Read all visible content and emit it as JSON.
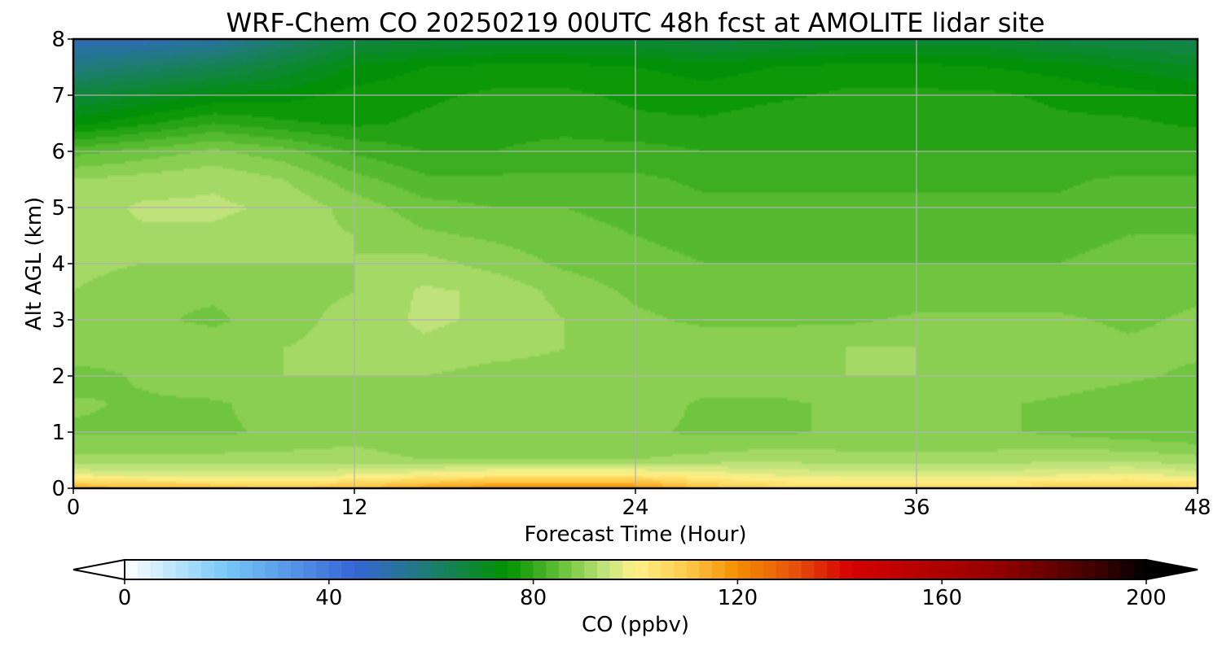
{
  "chart_data": {
    "type": "heatmap",
    "title": "WRF-Chem CO  20250219 00UTC 48h fcst at AMOLITE lidar site",
    "xlabel": "Forecast Time (Hour)",
    "ylabel": "Alt AGL (km)",
    "xlim": [
      0,
      48
    ],
    "ylim": [
      0,
      8
    ],
    "x_ticks": [
      "0",
      "12",
      "24",
      "36",
      "48"
    ],
    "y_ticks": [
      "0",
      "1",
      "2",
      "3",
      "4",
      "5",
      "6",
      "7",
      "8"
    ],
    "grid": true,
    "x": [
      0,
      3,
      6,
      9,
      12,
      15,
      18,
      21,
      24,
      27,
      30,
      33,
      36,
      39,
      42,
      45,
      48
    ],
    "y": [
      0,
      0.1,
      0.25,
      0.5,
      1,
      1.5,
      2,
      2.5,
      3,
      3.5,
      4,
      4.5,
      5,
      5.5,
      6,
      6.5,
      7,
      7.5,
      8
    ],
    "z_units": "ppbv",
    "z": [
      [
        115,
        113,
        112,
        111,
        112,
        117,
        120,
        120,
        119,
        112,
        108,
        106,
        106,
        107,
        109,
        110,
        108
      ],
      [
        108,
        106,
        105,
        104,
        106,
        110,
        113,
        113,
        113,
        106,
        103,
        102,
        102,
        102,
        104,
        105,
        103
      ],
      [
        97,
        96,
        96,
        96,
        97,
        99,
        101,
        101,
        101,
        99,
        97,
        96,
        96,
        96,
        97,
        98,
        96
      ],
      [
        91,
        91,
        91,
        91,
        91,
        90,
        90,
        90,
        90,
        91,
        92,
        91,
        91,
        91,
        92,
        92,
        91
      ],
      [
        87,
        87,
        87,
        88,
        89,
        88,
        88,
        88,
        88,
        87,
        87,
        88,
        88,
        88,
        87,
        86,
        85
      ],
      [
        88,
        87,
        87,
        89,
        89,
        89,
        89,
        89,
        89,
        87,
        87,
        88,
        88,
        88,
        87,
        86,
        85
      ],
      [
        86,
        88,
        90,
        90,
        90,
        90,
        89,
        89,
        89,
        89,
        89,
        90,
        90,
        90,
        89,
        88,
        87
      ],
      [
        90,
        89,
        89,
        90,
        91,
        92,
        91,
        90,
        89,
        89,
        89,
        90,
        90,
        89,
        89,
        88,
        88
      ],
      [
        90,
        88,
        87,
        89,
        91,
        93,
        92,
        90,
        88,
        87,
        87,
        87,
        88,
        88,
        88,
        87,
        88
      ],
      [
        90,
        88,
        88,
        89,
        90,
        93,
        92,
        89,
        87,
        86,
        86,
        86,
        86,
        86,
        86,
        86,
        87
      ],
      [
        91,
        90,
        90,
        90,
        90,
        91,
        89,
        87,
        86,
        85,
        85,
        85,
        85,
        85,
        85,
        86,
        86
      ],
      [
        92,
        92,
        92,
        91,
        90,
        88,
        87,
        86,
        85,
        84,
        84,
        84,
        84,
        84,
        84,
        85,
        85
      ],
      [
        91,
        93,
        93,
        92,
        89,
        86,
        85,
        85,
        84,
        83,
        83,
        83,
        83,
        83,
        83,
        84,
        84
      ],
      [
        90,
        91,
        92,
        90,
        86,
        83,
        83,
        83,
        83,
        82,
        82,
        82,
        82,
        82,
        82,
        83,
        83
      ],
      [
        84,
        86,
        88,
        86,
        82,
        80,
        80,
        81,
        81,
        80,
        80,
        80,
        80,
        80,
        80,
        80,
        80
      ],
      [
        74,
        77,
        80,
        78,
        77,
        78,
        79,
        79,
        78,
        78,
        79,
        79,
        79,
        79,
        78,
        78,
        77
      ],
      [
        67,
        70,
        73,
        74,
        76,
        77,
        78,
        78,
        77,
        76,
        77,
        78,
        78,
        78,
        77,
        76,
        75
      ],
      [
        58,
        61,
        64,
        68,
        73,
        75,
        76,
        76,
        75,
        74,
        75,
        76,
        76,
        75,
        74,
        72,
        70
      ],
      [
        50,
        50,
        53,
        60,
        66,
        67,
        68,
        68,
        68,
        66,
        67,
        68,
        68,
        68,
        66,
        65,
        64
      ]
    ]
  },
  "colorbar": {
    "label": "CO  (ppbv)",
    "min": 0,
    "max": 200,
    "step": 2.5,
    "ticks": [
      "0",
      "40",
      "80",
      "120",
      "160",
      "200"
    ],
    "extend": "both",
    "stops": [
      {
        "v": 0,
        "c": "#ffffff"
      },
      {
        "v": 20,
        "c": "#75c7f7"
      },
      {
        "v": 45,
        "c": "#3665d6"
      },
      {
        "v": 60,
        "c": "#1d7d70"
      },
      {
        "v": 75,
        "c": "#009200"
      },
      {
        "v": 86,
        "c": "#6cc43c"
      },
      {
        "v": 94,
        "c": "#c2e47c"
      },
      {
        "v": 100,
        "c": "#fff28a"
      },
      {
        "v": 110,
        "c": "#fdcb4c"
      },
      {
        "v": 120,
        "c": "#f58c00"
      },
      {
        "v": 130,
        "c": "#e85a0a"
      },
      {
        "v": 142,
        "c": "#d50000"
      },
      {
        "v": 170,
        "c": "#960000"
      },
      {
        "v": 190,
        "c": "#400000"
      },
      {
        "v": 200,
        "c": "#000000"
      }
    ],
    "over_color": "#000000",
    "under_color": "#ffffff"
  }
}
